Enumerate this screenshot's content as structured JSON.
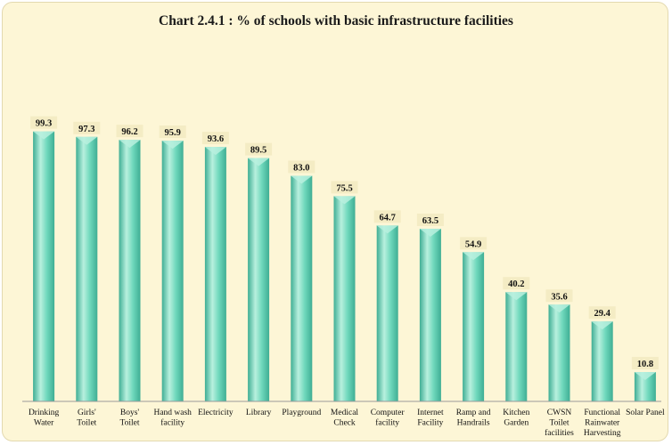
{
  "chart_data": {
    "type": "bar",
    "title": "Chart 2.4.1 : % of schools with basic infrastructure facilities",
    "xlabel": "",
    "ylabel": "",
    "ylim": [
      0,
      110
    ],
    "grid": false,
    "legend": "none",
    "categories": [
      [
        "Drinking",
        "Water"
      ],
      [
        "Girls'",
        "Toilet"
      ],
      [
        "Boys'",
        "Toilet"
      ],
      [
        "Hand wash",
        "facility"
      ],
      [
        "Electricity"
      ],
      [
        "Library"
      ],
      [
        "Playground"
      ],
      [
        "Medical",
        "Check"
      ],
      [
        "Computer",
        "facility"
      ],
      [
        "Internet",
        "Facility"
      ],
      [
        "Ramp and",
        "Handrails"
      ],
      [
        "Kitchen",
        "Garden"
      ],
      [
        "CWSN",
        "Toilet",
        "facilities"
      ],
      [
        "Functional",
        "Rainwater",
        "Harvesting"
      ],
      [
        "Solar Panel"
      ]
    ],
    "values": [
      99.3,
      97.3,
      96.2,
      95.9,
      93.6,
      89.5,
      83.0,
      75.5,
      64.7,
      63.5,
      54.9,
      40.2,
      35.6,
      29.4,
      10.8
    ],
    "value_labels": [
      "99.3",
      "97.3",
      "96.2",
      "95.9",
      "93.6",
      "89.5",
      "83.0",
      "75.5",
      "64.7",
      "63.5",
      "54.9",
      "40.2",
      "35.6",
      "29.4",
      "10.8"
    ],
    "colors": {
      "background": "#fdf6d6",
      "bar_light": "#b8f0de",
      "bar_mid": "#6fd8bc",
      "bar_dark": "#3fae94",
      "label_box": "#f4ecc4",
      "axis": "#9a9a9a"
    }
  }
}
